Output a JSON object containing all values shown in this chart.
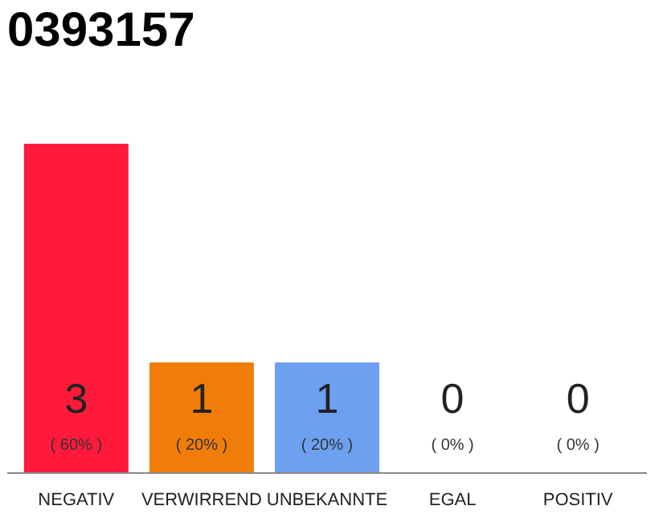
{
  "chart_data": {
    "type": "bar",
    "title": "0393157",
    "categories": [
      "NEGATIV",
      "VERWIRREND",
      "UNBEKANNTE",
      "EGAL",
      "POSITIV"
    ],
    "values": [
      3,
      1,
      1,
      0,
      0
    ],
    "colors": [
      "#ff1a3c",
      "#f07d0a",
      "#6ea0f0",
      "#cccccc",
      "#cccccc"
    ],
    "ylim": [
      0,
      3
    ],
    "tick_labels": "x",
    "value_labels": [
      "3\n( 60% )",
      "1\n( 20% )",
      "1\n( 20% )",
      "0\n( 0% )",
      "0\n( 0% )"
    ]
  }
}
